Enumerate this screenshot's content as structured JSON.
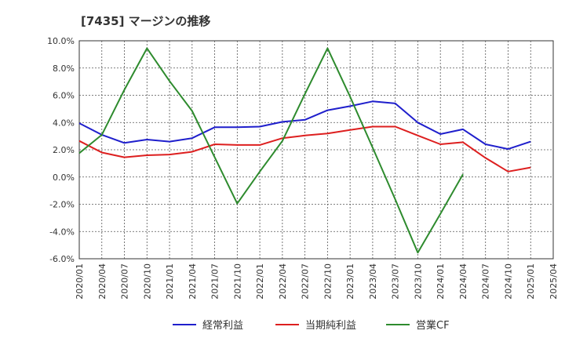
{
  "chart_data": {
    "type": "line",
    "title": "[7435]  マージンの推移",
    "xlabel": "",
    "ylabel": "",
    "ylim": [
      -6,
      10
    ],
    "yticks": [
      10,
      8,
      6,
      4,
      2,
      0,
      -2,
      -4,
      -6
    ],
    "ytick_labels": [
      "10.0%",
      "8.0%",
      "6.0%",
      "4.0%",
      "2.0%",
      "0.0%",
      "-2.0%",
      "-4.0%",
      "-6.0%"
    ],
    "categories": [
      "2020/01",
      "2020/04",
      "2020/07",
      "2020/10",
      "2021/01",
      "2021/04",
      "2021/07",
      "2021/10",
      "2022/01",
      "2022/04",
      "2022/07",
      "2022/10",
      "2023/01",
      "2023/04",
      "2023/07",
      "2023/10",
      "2024/01",
      "2024/04",
      "2024/07",
      "2024/10",
      "2025/01",
      "2025/04"
    ],
    "grid": true,
    "legend_position": "bottom",
    "series": [
      {
        "name": "経常利益",
        "color": "#1f1fcc",
        "values": [
          3.95,
          3.1,
          2.5,
          2.75,
          2.6,
          2.85,
          3.65,
          3.65,
          3.7,
          4.05,
          4.2,
          4.9,
          5.2,
          5.55,
          5.4,
          4.0,
          3.15,
          3.5,
          2.4,
          2.05,
          2.6,
          null
        ]
      },
      {
        "name": "当期純利益",
        "color": "#dd1f1f",
        "values": [
          2.65,
          1.8,
          1.45,
          1.6,
          1.65,
          1.85,
          2.4,
          2.35,
          2.35,
          2.85,
          3.05,
          3.2,
          3.45,
          3.7,
          3.7,
          3.05,
          2.4,
          2.55,
          1.4,
          0.4,
          0.7,
          null
        ]
      },
      {
        "name": "営業CF",
        "color": "#2e8b2e",
        "values": [
          1.75,
          3.1,
          6.4,
          9.45,
          7.05,
          4.85,
          1.45,
          -1.95,
          0.4,
          2.65,
          6.1,
          9.45,
          5.9,
          2.15,
          -1.65,
          -5.55,
          -2.7,
          0.2,
          null,
          null,
          null,
          null
        ]
      }
    ]
  }
}
